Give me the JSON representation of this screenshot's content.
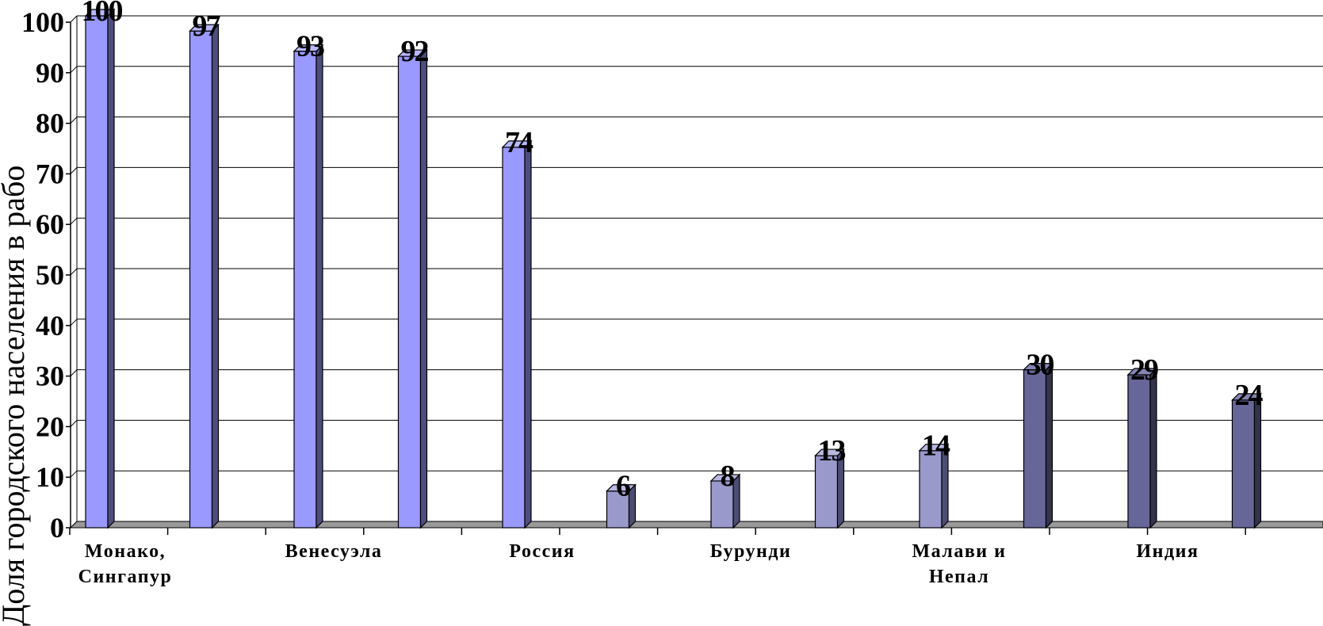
{
  "chart_data": {
    "type": "bar",
    "bar_style": "3d-column",
    "ylabel": "Доля городского населения в рабо",
    "xlabel": "",
    "title": "",
    "ylim": [
      0,
      100
    ],
    "yticks": [
      0,
      10,
      20,
      30,
      40,
      50,
      60,
      70,
      80,
      90,
      100
    ],
    "grid": true,
    "legend": "none",
    "category_labels": [
      {
        "lines": [
          "Монако,",
          "Сингапур"
        ],
        "at_bar": 0
      },
      {
        "lines": [
          "Венесуэла"
        ],
        "at_bar": 2
      },
      {
        "lines": [
          "Россия"
        ],
        "at_bar": 4
      },
      {
        "lines": [
          "Бурунди"
        ],
        "at_bar": 6
      },
      {
        "lines": [
          "Малави и",
          "Непал"
        ],
        "at_bar": 8
      },
      {
        "lines": [
          "Индия"
        ],
        "at_bar": 10
      }
    ],
    "values": [
      100,
      97,
      93,
      92,
      74,
      6,
      8,
      13,
      14,
      30,
      29,
      24
    ],
    "bar_groups": [
      0,
      0,
      0,
      0,
      0,
      1,
      1,
      1,
      1,
      2,
      2,
      2
    ],
    "colors": {
      "group_front": [
        "#9999ff",
        "#9999cc",
        "#666699"
      ],
      "group_side": [
        "#4d4d80",
        "#4d4d73",
        "#33334d"
      ],
      "group_top": [
        "#b8b8ff",
        "#b8b8e0",
        "#8585b3"
      ],
      "grid": "#000000",
      "floor": "#999999"
    }
  }
}
